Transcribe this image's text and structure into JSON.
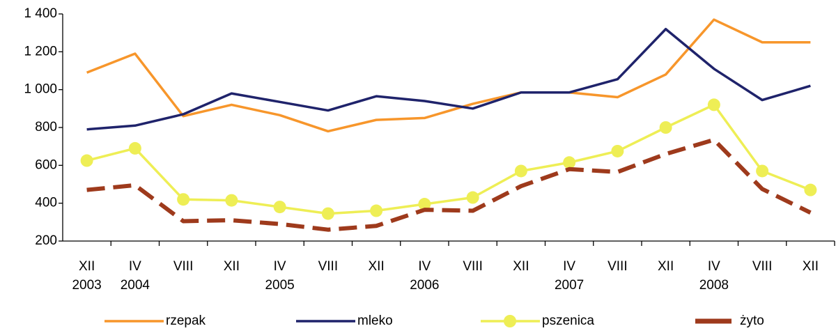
{
  "chart_data": {
    "type": "line",
    "categories": [
      "XII",
      "IV",
      "VIII",
      "XII",
      "IV",
      "VIII",
      "XII",
      "IV",
      "VIII",
      "XII",
      "IV",
      "VIII",
      "XII",
      "IV",
      "VIII",
      "XII"
    ],
    "category_years": [
      "2003",
      "2004",
      null,
      null,
      "2005",
      null,
      null,
      "2006",
      null,
      null,
      "2007",
      null,
      null,
      "2008",
      null,
      null
    ],
    "ylim": [
      200,
      1400
    ],
    "yticks": [
      200,
      400,
      600,
      800,
      {
        "value": 1000,
        "label": "1 000"
      },
      {
        "value": 1200,
        "label": "1 200"
      },
      {
        "value": 1400,
        "label": "1 400"
      }
    ],
    "grid": false,
    "legend": "bottom",
    "series": [
      {
        "name": "rzepak",
        "color": "#f7962b",
        "dash": false,
        "marker": false,
        "values": [
          1090,
          1190,
          860,
          920,
          865,
          780,
          840,
          850,
          925,
          985,
          985,
          960,
          1080,
          1370,
          1250,
          1250
        ]
      },
      {
        "name": "mleko",
        "color": "#1f236b",
        "dash": false,
        "marker": false,
        "values": [
          790,
          810,
          870,
          980,
          935,
          890,
          965,
          940,
          900,
          985,
          985,
          1055,
          1320,
          1110,
          945,
          1020
        ]
      },
      {
        "name": "pszenica",
        "color": "#eeee55",
        "dash": false,
        "marker": true,
        "values": [
          625,
          690,
          420,
          415,
          380,
          345,
          360,
          395,
          430,
          570,
          615,
          675,
          800,
          920,
          570,
          470
        ]
      },
      {
        "name": "żyto",
        "color": "#9e3a1c",
        "dash": true,
        "marker": false,
        "values": [
          470,
          495,
          305,
          310,
          290,
          260,
          280,
          365,
          360,
          490,
          580,
          565,
          660,
          735,
          475,
          350
        ]
      }
    ]
  }
}
